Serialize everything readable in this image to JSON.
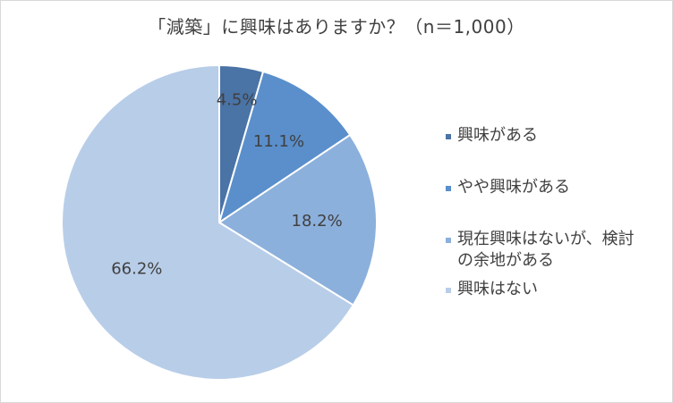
{
  "title": "「減築」に興味はありますか？（n＝1,000）",
  "colors": {
    "background": "#ffffff",
    "border": "#d9d9d9",
    "text": "#404040",
    "slice_stroke": "#ffffff"
  },
  "chart_data": {
    "type": "pie",
    "title": "「減築」に興味はありますか？（n＝1,000）",
    "labels": [
      "興味がある",
      "やや興味がある",
      "現在興味はないが、検討\nの余地がある",
      "興味はない"
    ],
    "values": [
      4.5,
      11.1,
      18.2,
      66.2
    ],
    "value_labels": [
      "4.5%",
      "11.1%",
      "18.2%",
      "66.2%"
    ],
    "colors": [
      "#4a73a6",
      "#5a8fcb",
      "#8cb0dc",
      "#b8cde8"
    ],
    "start_angle": "12 o'clock",
    "direction": "clockwise",
    "legend_position": "right"
  }
}
